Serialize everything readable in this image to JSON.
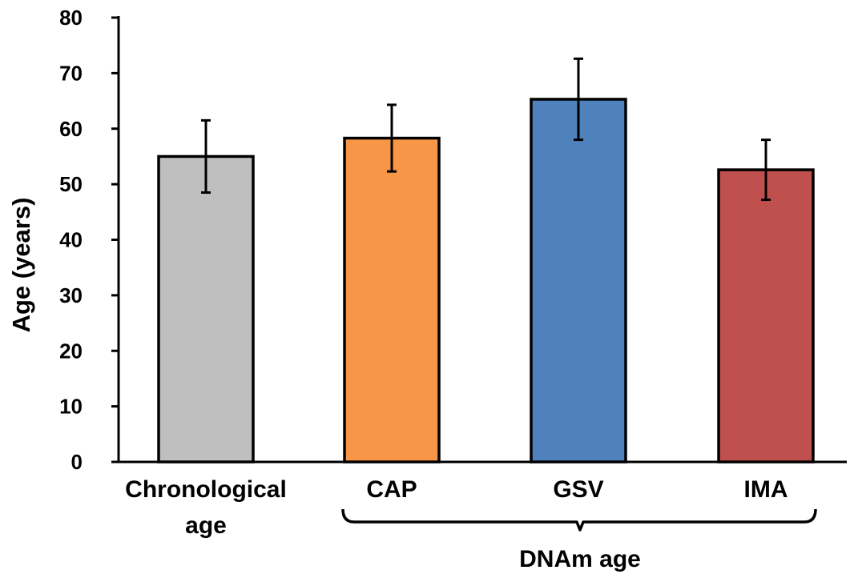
{
  "chart_data": {
    "type": "bar",
    "title": "",
    "xlabel": "",
    "ylabel": "Age (years)",
    "ylim": [
      0,
      80
    ],
    "yticks": [
      0,
      10,
      20,
      30,
      40,
      50,
      60,
      70,
      80
    ],
    "grid": false,
    "legend": "none",
    "categories": [
      {
        "label_lines": [
          "Chronological",
          "age"
        ],
        "value": 55.0,
        "error_low": 48.5,
        "error_high": 61.5,
        "color": "#BFBFBF"
      },
      {
        "label_lines": [
          "CAP"
        ],
        "value": 58.3,
        "error_low": 52.3,
        "error_high": 64.3,
        "color": "#F79646"
      },
      {
        "label_lines": [
          "GSV"
        ],
        "value": 65.3,
        "error_low": 58.0,
        "error_high": 72.6,
        "color": "#4F81BD"
      },
      {
        "label_lines": [
          "IMA"
        ],
        "value": 52.6,
        "error_low": 47.2,
        "error_high": 58.0,
        "color": "#C0504D"
      }
    ],
    "group_bracket": {
      "label": "DNAm age",
      "covers": [
        "CAP",
        "GSV",
        "IMA"
      ]
    }
  }
}
